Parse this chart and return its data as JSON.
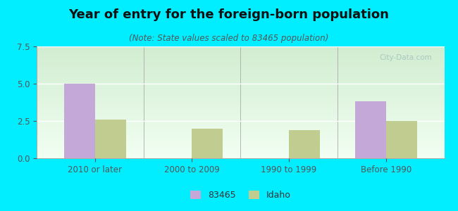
{
  "title": "Year of entry for the foreign-born population",
  "subtitle": "(Note: State values scaled to 83465 population)",
  "categories": [
    "2010 or later",
    "2000 to 2009",
    "1990 to 1999",
    "Before 1990"
  ],
  "series_83465": [
    5.0,
    0.0,
    0.0,
    3.8
  ],
  "series_idaho": [
    2.6,
    2.0,
    1.9,
    2.5
  ],
  "color_83465": "#c4a8d8",
  "color_idaho": "#c0cc90",
  "ylim": [
    0,
    7.5
  ],
  "yticks": [
    0,
    2.5,
    5,
    7.5
  ],
  "background_outer": "#00eeff",
  "bar_width": 0.32,
  "title_fontsize": 13,
  "subtitle_fontsize": 8.5,
  "tick_fontsize": 8.5,
  "legend_labels": [
    "83465",
    "Idaho"
  ]
}
